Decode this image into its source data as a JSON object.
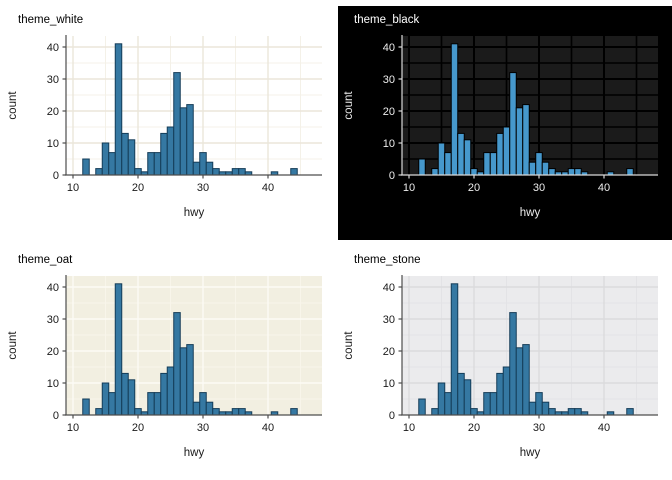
{
  "figure": {
    "background": "#ffffff",
    "layout": "2x2 grid of ggplot-style histograms"
  },
  "charts": [
    {
      "title": "theme_white",
      "theme": {
        "fig_bg": "#ffffff",
        "panel_bg": "#ffffff",
        "grid_major": "#ebe6da",
        "grid_minor": "#f4f1e8",
        "grid_major_w": 1.4,
        "grid_minor_w": 1,
        "bar_fill": "#3578a2",
        "bar_stroke": "#143c58",
        "axis_color": "#4d4d4d",
        "text_color": "#1a1a1a",
        "title_color": "#000000",
        "inset_fig": false
      }
    },
    {
      "title": "theme_black",
      "theme": {
        "fig_bg": "#000000",
        "panel_bg": "#1b1b1b",
        "grid_major": "#000000",
        "grid_minor": "#000000",
        "grid_major_w": 2,
        "grid_minor_w": 1.6,
        "bar_fill": "#4698cc",
        "bar_stroke": "#000000",
        "axis_color": "#d9d9d9",
        "text_color": "#ededed",
        "title_color": "#ffffff",
        "inset_fig": true
      }
    },
    {
      "title": "theme_oat",
      "theme": {
        "fig_bg": "#ffffff",
        "panel_bg": "#f2efe1",
        "grid_major": "#fcfbf5",
        "grid_minor": "#f8f5ea",
        "grid_major_w": 1.4,
        "grid_minor_w": 1,
        "bar_fill": "#3578a2",
        "bar_stroke": "#143c58",
        "axis_color": "#4d4d4d",
        "text_color": "#1a1a1a",
        "title_color": "#000000",
        "inset_fig": false
      }
    },
    {
      "title": "theme_stone",
      "theme": {
        "fig_bg": "#ffffff",
        "panel_bg": "#ebebed",
        "grid_major": "#dbdbdd",
        "grid_minor": "#e3e3e6",
        "grid_major_w": 1.4,
        "grid_minor_w": 1,
        "bar_fill": "#3578a2",
        "bar_stroke": "#143c58",
        "axis_color": "#4d4d4d",
        "text_color": "#1a1a1a",
        "title_color": "#000000",
        "inset_fig": false
      }
    }
  ],
  "chart_data": {
    "type": "bar",
    "variant": "histogram",
    "xlabel": "hwy",
    "ylabel": "count",
    "binwidth": 1,
    "x": [
      12,
      13,
      14,
      15,
      16,
      17,
      18,
      19,
      20,
      21,
      22,
      23,
      24,
      25,
      26,
      27,
      28,
      29,
      30,
      31,
      32,
      33,
      34,
      35,
      36,
      37,
      38,
      39,
      40,
      41,
      42,
      43,
      44
    ],
    "values": [
      5,
      0,
      2,
      10,
      7,
      41,
      13,
      11,
      2,
      1,
      7,
      7,
      13,
      15,
      32,
      21,
      22,
      4,
      7,
      4,
      2,
      1,
      1,
      2,
      2,
      1,
      0,
      0,
      0,
      1,
      0,
      0,
      2
    ],
    "x_ticks": [
      10,
      20,
      30,
      40
    ],
    "y_ticks": [
      0,
      10,
      20,
      30,
      40
    ],
    "x_minor": [
      15,
      25,
      35,
      45
    ],
    "y_minor": [
      5,
      15,
      25,
      35
    ],
    "xlim": [
      8.9,
      48.3
    ],
    "ylim": [
      0,
      43.5
    ],
    "grid": true,
    "legend": "none"
  }
}
